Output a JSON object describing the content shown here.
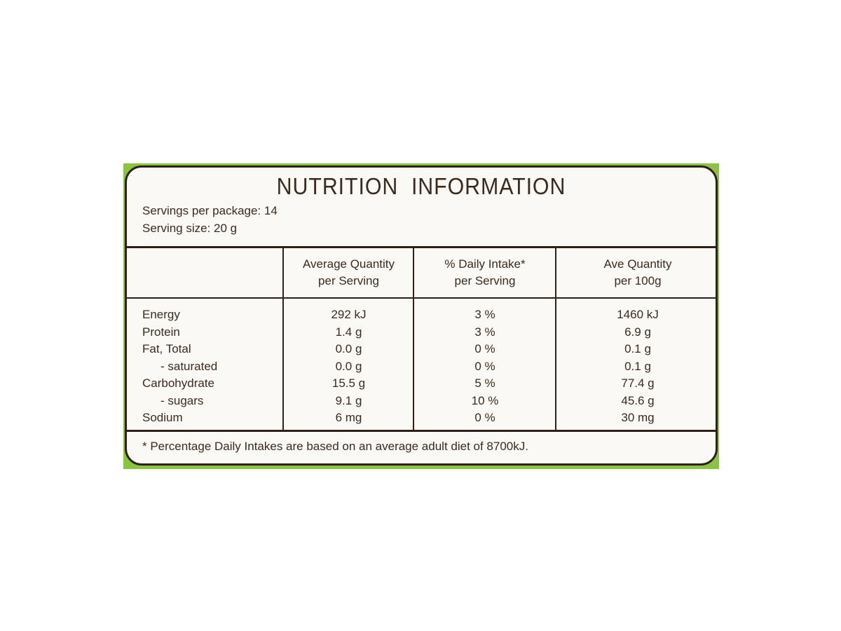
{
  "title": "NUTRITION  INFORMATION",
  "servings_per_package": "Servings per package: 14",
  "serving_size": "Serving size: 20 g",
  "columns": [
    {
      "line1": "Average Quantity",
      "line2": "per Serving"
    },
    {
      "line1": "% Daily Intake*",
      "line2": "per Serving"
    },
    {
      "line1": "Ave Quantity",
      "line2": "per 100g"
    }
  ],
  "rows": [
    {
      "name": "Energy",
      "per_serving": "292 kJ",
      "daily_intake": "3 %",
      "per_100g": "1460 kJ"
    },
    {
      "name": "Protein",
      "per_serving": "1.4 g",
      "daily_intake": "3 %",
      "per_100g": "6.9 g"
    },
    {
      "name": "Fat, Total",
      "per_serving": "0.0 g",
      "daily_intake": "0 %",
      "per_100g": "0.1 g"
    },
    {
      "name": "- saturated",
      "per_serving": "0.0 g",
      "daily_intake": "0 %",
      "per_100g": "0.1 g"
    },
    {
      "name": "Carbohydrate",
      "per_serving": "15.5 g",
      "daily_intake": "5 %",
      "per_100g": "77.4 g"
    },
    {
      "name": "- sugars",
      "per_serving": "9.1 g",
      "daily_intake": "10 %",
      "per_100g": "45.6 g"
    },
    {
      "name": "Sodium",
      "per_serving": "6 mg",
      "daily_intake": "0 %",
      "per_100g": "30 mg"
    }
  ],
  "footnote": "* Percentage Daily Intakes are based on an average adult diet of 8700kJ.",
  "colors": {
    "border": "#2e2218",
    "accent_green": "#8bc53f",
    "panel": "#faf9f6"
  }
}
